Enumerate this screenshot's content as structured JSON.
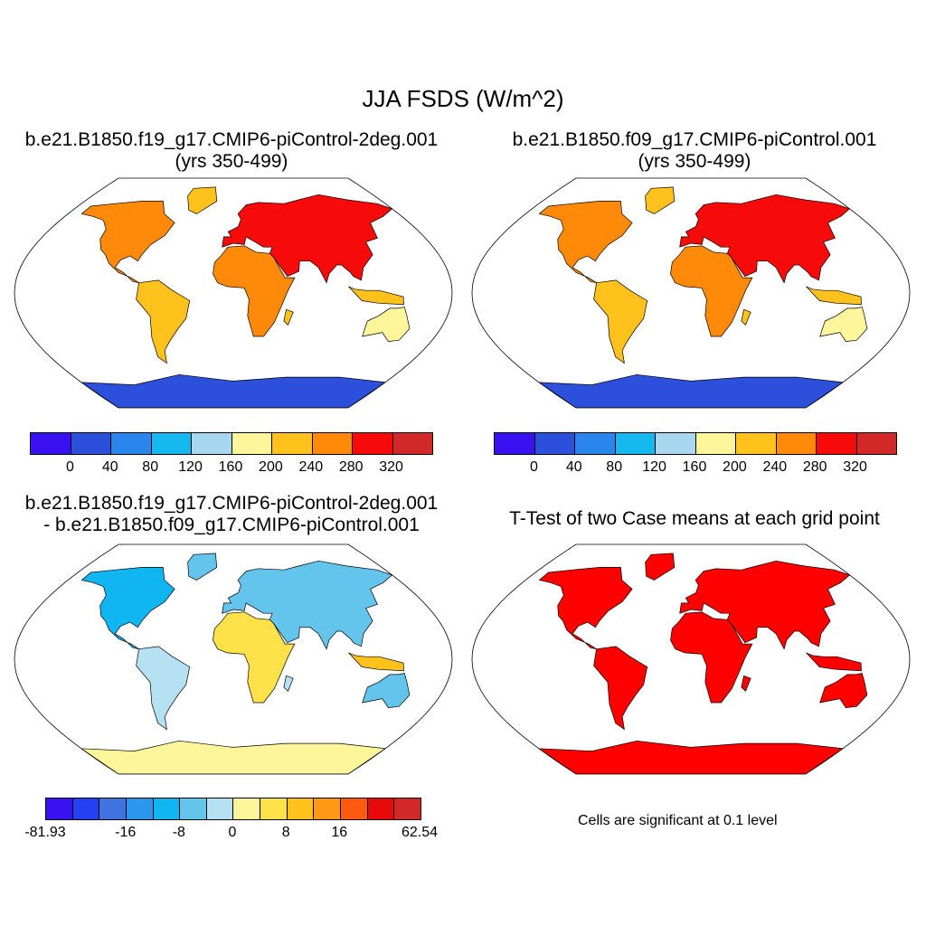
{
  "title": "JJA FSDS (W/m^2)",
  "panels": {
    "p1": {
      "title_line1": "b.e21.B1850.f19_g17.CMIP6-piControl-2deg.001",
      "title_line2": "(yrs 350-499)"
    },
    "p2": {
      "title_line1": "b.e21.B1850.f09_g17.CMIP6-piControl.001",
      "title_line2": "(yrs 350-499)"
    },
    "p3": {
      "title_line1": "b.e21.B1850.f19_g17.CMIP6-piControl-2deg.001",
      "title_line2": "- b.e21.B1850.f09_g17.CMIP6-piControl.001"
    },
    "p4": {
      "title": "T-Test of two Case means at each grid point",
      "note": "Cells are significant at 0.1 level"
    }
  },
  "colorbars": {
    "abs": {
      "colors": [
        "#3a12f2",
        "#2c4fdc",
        "#2a86ec",
        "#16b8f0",
        "#a8d8f0",
        "#fff59a",
        "#ffc21c",
        "#ff8a0a",
        "#f70a0a",
        "#d22828"
      ],
      "tick_labels": [
        "0",
        "40",
        "80",
        "120",
        "160",
        "200",
        "240",
        "280",
        "320"
      ]
    },
    "diff": {
      "colors": [
        "#3a12f2",
        "#2440f0",
        "#3f74e0",
        "#2b96ee",
        "#10b6f2",
        "#63c5ec",
        "#b6e1f3",
        "#fff59a",
        "#ffe14a",
        "#ffc21c",
        "#ff9812",
        "#ff5a10",
        "#e80a0a",
        "#d22828"
      ],
      "tick_labels": [
        "-81.93",
        "-16",
        "-8",
        "0",
        "8",
        "16",
        "62.54"
      ]
    }
  },
  "map_colors": {
    "ocean": "#ffffff",
    "antarctica_abs": "#2c4fdc",
    "antarctica_diff": "#fff59a",
    "significant": "#ff0000"
  }
}
